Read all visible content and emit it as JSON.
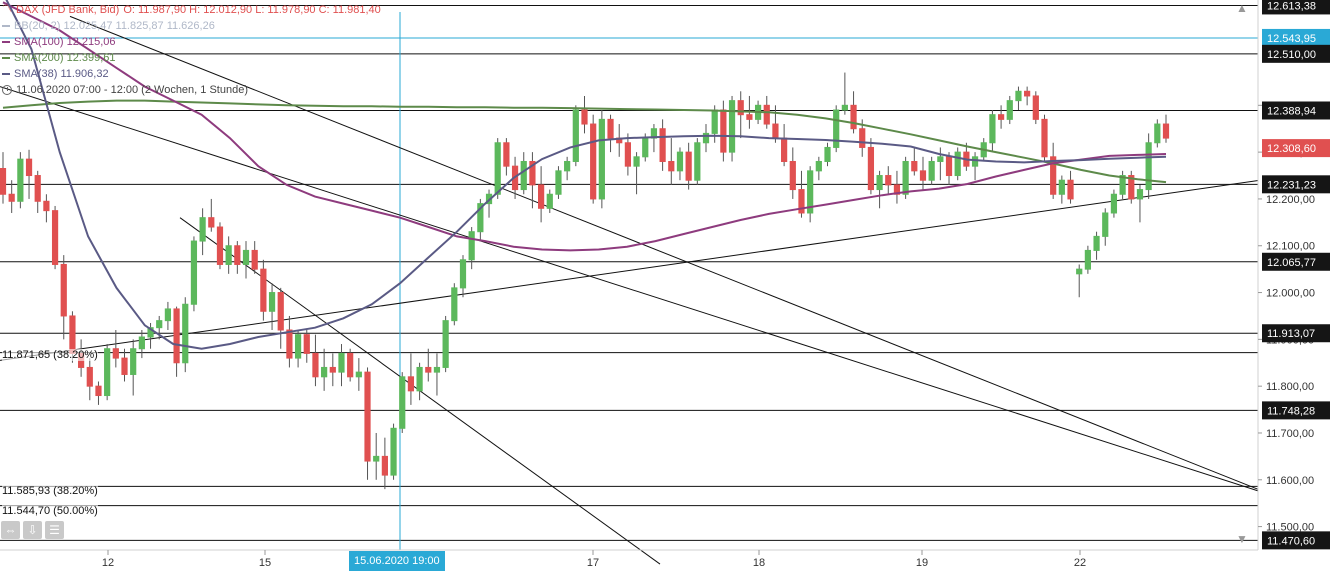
{
  "legend": {
    "title": "DAX (JFD Bank, Bid)",
    "ohlc": "O: 11.987,90  H: 12.012,90  L: 11.978,90  C: 11.981,40",
    "bb": "BB(20, 2)  12.025,47  11.825,87  11.626,26",
    "sma100": "SMA(100)  12.215,06",
    "sma200": "SMA(200)  12.399,61",
    "sma38": "SMA(38)  11.906,32",
    "period": "11.06.2020 07:00 - 12:00  (2 Wochen, 1 Stunde)"
  },
  "fib_labels": [
    "11.871,65 (38.20%)",
    "11.585,93 (38.20%)",
    "11.544,70 (50.00%)"
  ],
  "crosshair_label": "15.06.2020 19:00",
  "colors": {
    "up": "#5cb85c",
    "down": "#e05050",
    "sma100": "#8e3b7e",
    "sma200": "#5d8a4a",
    "sma38": "#5a5a85",
    "crosshair": "#2aa9d6"
  },
  "icons": [
    "hand-icon",
    "clock-icon",
    "expand-icon",
    "download-icon",
    "settings-icon",
    "scroll-up-icon",
    "scroll-down-icon"
  ],
  "chart_data": {
    "type": "line",
    "ylim": [
      11450,
      12625
    ],
    "y_ticks": [
      11500,
      11600,
      11700,
      11800,
      11900,
      12000,
      12100,
      12200,
      12300,
      12400
    ],
    "y_tick_labels": [
      "11.500,00",
      "11.600,00",
      "11.700,00",
      "11.800,00",
      "11.900,00",
      "12.000,00",
      "12.100,00",
      "12.200,00",
      "12.300,00",
      "12.400,00"
    ],
    "x_tick_labels": [
      "12",
      "15",
      "17",
      "18",
      "19",
      "22"
    ],
    "x_tick_dates": [
      "2020-06-12",
      "2020-06-15",
      "2020-06-17",
      "2020-06-18",
      "2020-06-19",
      "2020-06-22"
    ],
    "levels": [
      {
        "value": 12613.38,
        "label": "12.613,38",
        "box": "dark"
      },
      {
        "value": 12543.95,
        "label": "12.543,95",
        "box": "blue"
      },
      {
        "value": 12510.0,
        "label": "12.510,00",
        "box": "dark"
      },
      {
        "value": 12388.94,
        "label": "12.388,94",
        "box": "dark"
      },
      {
        "value": 12231.23,
        "label": "12.231,23",
        "box": "dark"
      },
      {
        "value": 12065.77,
        "label": "12.065,77",
        "box": "dark"
      },
      {
        "value": 11913.07,
        "label": "11.913,07",
        "box": "dark"
      },
      {
        "value": 11871.65,
        "label": "",
        "box": "none"
      },
      {
        "value": 11748.28,
        "label": "11.748,28",
        "box": "dark"
      },
      {
        "value": 11585.93,
        "label": "",
        "box": "none"
      },
      {
        "value": 11544.7,
        "label": "",
        "box": "none"
      },
      {
        "value": 11470.6,
        "label": "11.470,60",
        "box": "dark"
      }
    ],
    "last_price": {
      "value": 12308.6,
      "label": "12.308,60"
    },
    "candles": [
      [
        12265,
        12300,
        12190,
        12210
      ],
      [
        12210,
        12240,
        12170,
        12195
      ],
      [
        12195,
        12300,
        12180,
        12285
      ],
      [
        12285,
        12305,
        12200,
        12250
      ],
      [
        12250,
        12260,
        12170,
        12195
      ],
      [
        12195,
        12210,
        12150,
        12175
      ],
      [
        12175,
        12185,
        12050,
        12060
      ],
      [
        12060,
        12080,
        11900,
        11950
      ],
      [
        11950,
        11960,
        11850,
        11870
      ],
      [
        11870,
        11900,
        11820,
        11840
      ],
      [
        11840,
        11860,
        11770,
        11800
      ],
      [
        11800,
        11810,
        11760,
        11780
      ],
      [
        11780,
        11890,
        11770,
        11880
      ],
      [
        11880,
        11920,
        11840,
        11860
      ],
      [
        11860,
        11880,
        11810,
        11825
      ],
      [
        11825,
        11900,
        11780,
        11880
      ],
      [
        11880,
        11920,
        11860,
        11905
      ],
      [
        11905,
        11935,
        11880,
        11925
      ],
      [
        11925,
        11950,
        11900,
        11940
      ],
      [
        11940,
        11980,
        11920,
        11965
      ],
      [
        11965,
        11970,
        11820,
        11850
      ],
      [
        11850,
        11990,
        11830,
        11975
      ],
      [
        11975,
        12120,
        11960,
        12110
      ],
      [
        12110,
        12180,
        12080,
        12160
      ],
      [
        12160,
        12200,
        12130,
        12140
      ],
      [
        12140,
        12150,
        12050,
        12060
      ],
      [
        12060,
        12120,
        12040,
        12100
      ],
      [
        12100,
        12110,
        12040,
        12060
      ],
      [
        12060,
        12110,
        12030,
        12090
      ],
      [
        12090,
        12110,
        12040,
        12050
      ],
      [
        12050,
        12070,
        11940,
        11960
      ],
      [
        11960,
        12020,
        11920,
        12000
      ],
      [
        12000,
        12010,
        11880,
        11920
      ],
      [
        11920,
        11950,
        11840,
        11860
      ],
      [
        11860,
        11920,
        11840,
        11910
      ],
      [
        11910,
        11920,
        11850,
        11870
      ],
      [
        11870,
        11910,
        11800,
        11820
      ],
      [
        11820,
        11880,
        11790,
        11840
      ],
      [
        11840,
        11870,
        11800,
        11830
      ],
      [
        11830,
        11890,
        11800,
        11870
      ],
      [
        11870,
        11880,
        11810,
        11820
      ],
      [
        11820,
        11860,
        11790,
        11830
      ],
      [
        11830,
        11840,
        11600,
        11640
      ],
      [
        11640,
        11700,
        11600,
        11650
      ],
      [
        11650,
        11690,
        11580,
        11610
      ],
      [
        11610,
        11720,
        11600,
        11710
      ],
      [
        11710,
        11830,
        11700,
        11820
      ],
      [
        11820,
        11870,
        11760,
        11790
      ],
      [
        11790,
        11850,
        11770,
        11840
      ],
      [
        11840,
        11880,
        11810,
        11830
      ],
      [
        11830,
        11870,
        11780,
        11840
      ],
      [
        11840,
        11950,
        11830,
        11940
      ],
      [
        11940,
        12020,
        11930,
        12010
      ],
      [
        12010,
        12080,
        11990,
        12070
      ],
      [
        12070,
        12140,
        12050,
        12130
      ],
      [
        12130,
        12200,
        12110,
        12190
      ],
      [
        12190,
        12220,
        12160,
        12210
      ],
      [
        12210,
        12330,
        12200,
        12320
      ],
      [
        12320,
        12330,
        12250,
        12270
      ],
      [
        12270,
        12290,
        12200,
        12220
      ],
      [
        12220,
        12300,
        12210,
        12280
      ],
      [
        12280,
        12300,
        12180,
        12230
      ],
      [
        12230,
        12270,
        12150,
        12180
      ],
      [
        12180,
        12220,
        12170,
        12210
      ],
      [
        12210,
        12270,
        12200,
        12260
      ],
      [
        12260,
        12290,
        12240,
        12280
      ],
      [
        12280,
        12400,
        12270,
        12390
      ],
      [
        12390,
        12420,
        12340,
        12360
      ],
      [
        12360,
        12380,
        12190,
        12200
      ],
      [
        12200,
        12390,
        12180,
        12370
      ],
      [
        12370,
        12380,
        12300,
        12330
      ],
      [
        12330,
        12360,
        12290,
        12320
      ],
      [
        12320,
        12340,
        12250,
        12270
      ],
      [
        12270,
        12300,
        12210,
        12290
      ],
      [
        12290,
        12340,
        12280,
        12330
      ],
      [
        12330,
        12360,
        12300,
        12350
      ],
      [
        12350,
        12370,
        12260,
        12280
      ],
      [
        12280,
        12330,
        12230,
        12260
      ],
      [
        12260,
        12310,
        12240,
        12300
      ],
      [
        12300,
        12320,
        12220,
        12240
      ],
      [
        12240,
        12330,
        12230,
        12320
      ],
      [
        12320,
        12360,
        12300,
        12340
      ],
      [
        12340,
        12400,
        12320,
        12390
      ],
      [
        12390,
        12410,
        12280,
        12300
      ],
      [
        12300,
        12420,
        12280,
        12410
      ],
      [
        12410,
        12430,
        12330,
        12380
      ],
      [
        12380,
        12420,
        12350,
        12370
      ],
      [
        12370,
        12410,
        12360,
        12400
      ],
      [
        12400,
        12420,
        12350,
        12360
      ],
      [
        12360,
        12400,
        12320,
        12330
      ],
      [
        12330,
        12360,
        12270,
        12280
      ],
      [
        12280,
        12310,
        12200,
        12220
      ],
      [
        12220,
        12260,
        12160,
        12170
      ],
      [
        12170,
        12270,
        12150,
        12260
      ],
      [
        12260,
        12290,
        12240,
        12280
      ],
      [
        12280,
        12320,
        12270,
        12310
      ],
      [
        12310,
        12400,
        12300,
        12390
      ],
      [
        12390,
        12470,
        12380,
        12400
      ],
      [
        12400,
        12430,
        12340,
        12350
      ],
      [
        12350,
        12370,
        12290,
        12310
      ],
      [
        12310,
        12330,
        12210,
        12220
      ],
      [
        12220,
        12260,
        12180,
        12250
      ],
      [
        12250,
        12270,
        12210,
        12230
      ],
      [
        12230,
        12260,
        12190,
        12210
      ],
      [
        12210,
        12290,
        12200,
        12280
      ],
      [
        12280,
        12310,
        12250,
        12260
      ],
      [
        12260,
        12290,
        12220,
        12240
      ],
      [
        12240,
        12290,
        12230,
        12280
      ],
      [
        12280,
        12310,
        12240,
        12290
      ],
      [
        12290,
        12300,
        12230,
        12250
      ],
      [
        12250,
        12310,
        12240,
        12300
      ],
      [
        12300,
        12320,
        12260,
        12270
      ],
      [
        12270,
        12300,
        12240,
        12290
      ],
      [
        12290,
        12330,
        12280,
        12320
      ],
      [
        12320,
        12390,
        12300,
        12380
      ],
      [
        12380,
        12400,
        12350,
        12370
      ],
      [
        12370,
        12420,
        12360,
        12410
      ],
      [
        12410,
        12440,
        12390,
        12430
      ],
      [
        12430,
        12440,
        12400,
        12420
      ],
      [
        12420,
        12430,
        12360,
        12370
      ],
      [
        12370,
        12380,
        12280,
        12290
      ],
      [
        12290,
        12320,
        12200,
        12210
      ],
      [
        12210,
        12250,
        12190,
        12240
      ],
      [
        12240,
        12260,
        12190,
        12200
      ],
      [
        12040,
        12060,
        11990,
        12050
      ],
      [
        12050,
        12100,
        12040,
        12090
      ],
      [
        12090,
        12130,
        12070,
        12120
      ],
      [
        12120,
        12180,
        12100,
        12170
      ],
      [
        12170,
        12220,
        12160,
        12210
      ],
      [
        12210,
        12260,
        12200,
        12250
      ],
      [
        12250,
        12260,
        12190,
        12200
      ],
      [
        12200,
        12230,
        12150,
        12220
      ],
      [
        12220,
        12340,
        12200,
        12320
      ],
      [
        12320,
        12370,
        12310,
        12360
      ],
      [
        12360,
        12380,
        12320,
        12330
      ]
    ],
    "sma100_line": [
      12620,
      12590,
      12560,
      12520,
      12480,
      12440,
      12410,
      12380,
      12330,
      12270,
      12230,
      12205,
      12190,
      12175,
      12160,
      12140,
      12120,
      12110,
      12098,
      12092,
      12090,
      12092,
      12098,
      12110,
      12125,
      12140,
      12155,
      12168,
      12178,
      12188,
      12198,
      12208,
      12216,
      12222,
      12232,
      12248,
      12262,
      12276,
      12284,
      12292,
      12294,
      12296
    ],
    "sma200_line": [
      12395,
      12400,
      12405,
      12408,
      12410,
      12410,
      12408,
      12406,
      12404,
      12402,
      12400,
      12399,
      12398,
      12398,
      12397,
      12397,
      12396,
      12396,
      12395,
      12395,
      12394,
      12393,
      12392,
      12391,
      12390,
      12389,
      12387,
      12385,
      12380,
      12372,
      12362,
      12350,
      12338,
      12325,
      12312,
      12300,
      12288,
      12276,
      12262,
      12250,
      12242,
      12236
    ],
    "sma38_line": [
      12640,
      12520,
      12300,
      12120,
      12010,
      11930,
      11890,
      11880,
      11890,
      11905,
      11915,
      11925,
      11945,
      11975,
      12020,
      12075,
      12130,
      12190,
      12245,
      12285,
      12310,
      12325,
      12330,
      12332,
      12334,
      12335,
      12334,
      12330,
      12328,
      12326,
      12322,
      12318,
      12312,
      12296,
      12284,
      12280,
      12278,
      12281,
      12283,
      12286,
      12288,
      12290
    ],
    "trendlines": [
      {
        "from": [
          0,
          12440
        ],
        "to": [
          1260,
          11575
        ]
      },
      {
        "from": [
          0,
          11855
        ],
        "to": [
          1260,
          12240
        ]
      },
      {
        "from": [
          70,
          12590
        ],
        "to": [
          1260,
          11578
        ]
      },
      {
        "from": [
          180,
          12160
        ],
        "to": [
          660,
          11420
        ]
      }
    ]
  }
}
